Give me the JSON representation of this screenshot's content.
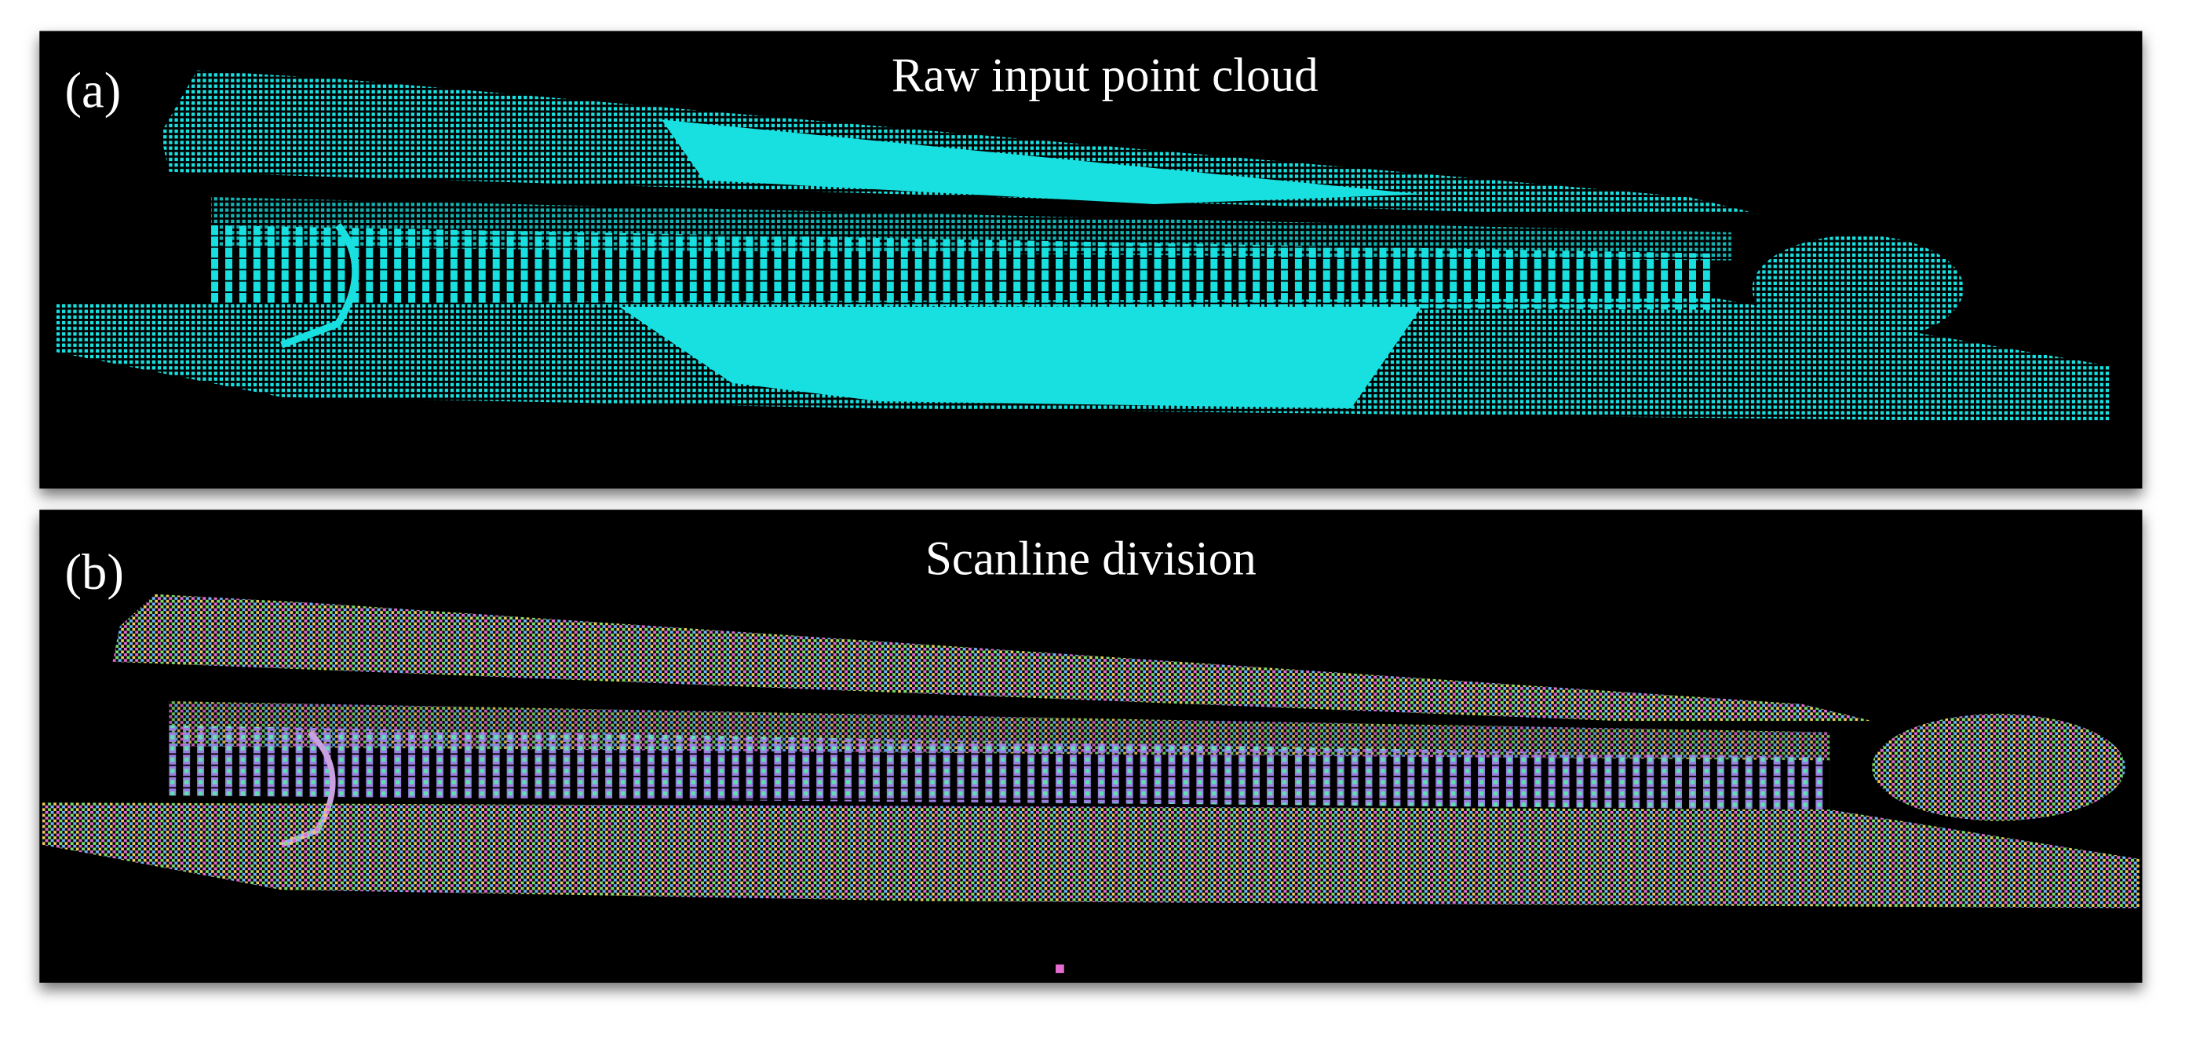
{
  "panels": [
    {
      "label": "(a)",
      "title": "Raw input point cloud"
    },
    {
      "label": "(b)",
      "title": "Scanline division"
    }
  ]
}
